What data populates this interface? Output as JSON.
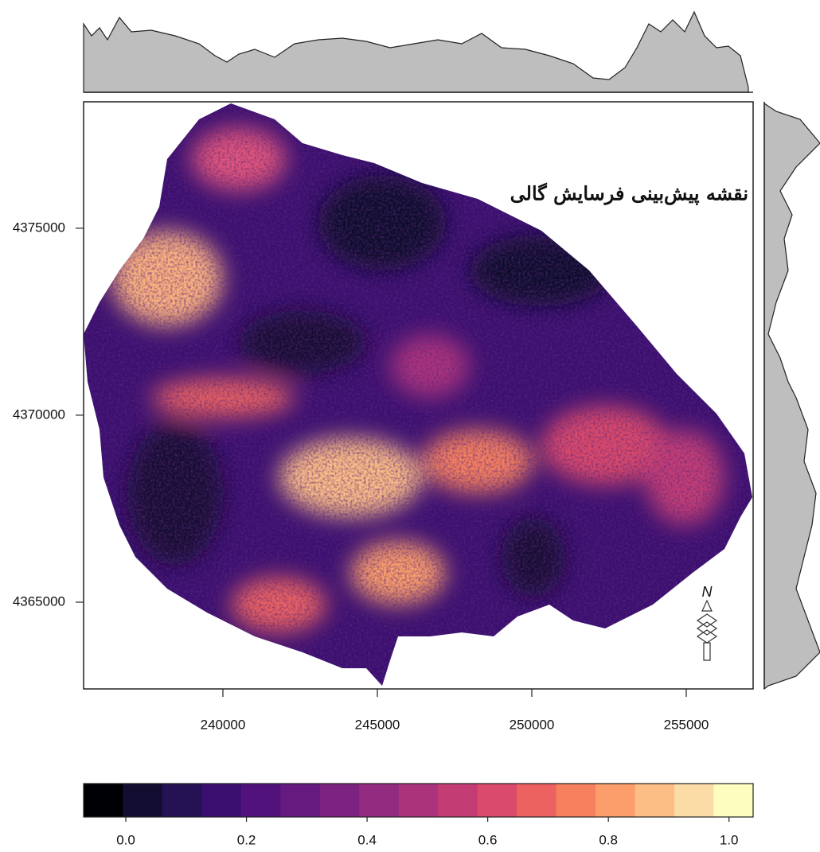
{
  "map": {
    "title": "نقشه پیش‌بینی فرسایش گالی",
    "north_label": "N",
    "xlim": [
      235490,
      257165
    ],
    "xticks": [
      240000,
      245000,
      250000,
      255000
    ],
    "ylim": [
      4362680,
      4378380
    ],
    "yticks": [
      4365000,
      4370000,
      4375000
    ],
    "colorbar": {
      "lim": [
        -0.07,
        1.04
      ],
      "ticks": [
        {
          "value": 0,
          "label": "0.0"
        },
        0.2,
        0.4,
        0.6,
        0.8,
        {
          "value": 1,
          "label": "1.0"
        }
      ],
      "colors": [
        "#000004",
        "#120d31",
        "#251255",
        "#3b0f70",
        "#51127c",
        "#661a80",
        "#7c2382",
        "#932b80",
        "#ab337c",
        "#c33d74",
        "#da4a6a",
        "#ec6260",
        "#f6805e",
        "#fb9e6b",
        "#fdbe86",
        "#fcdca6",
        "#fcfdbf"
      ]
    }
  }
}
